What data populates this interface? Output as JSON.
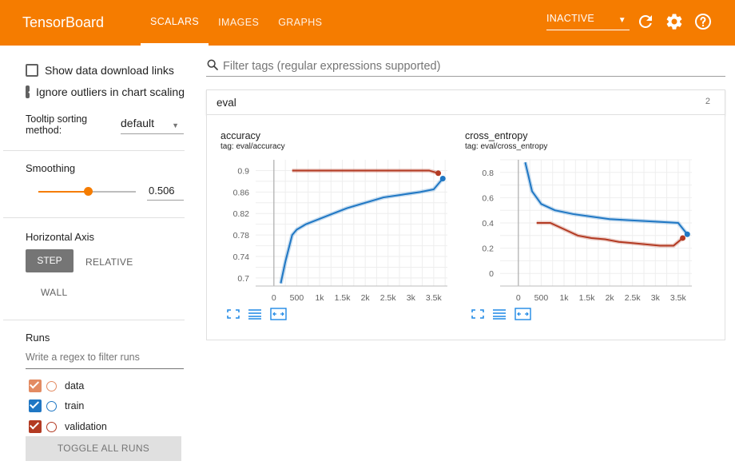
{
  "header": {
    "brand": "TensorBoard",
    "tabs": [
      {
        "label": "SCALARS",
        "active": true
      },
      {
        "label": "IMAGES",
        "active": false
      },
      {
        "label": "GRAPHS",
        "active": false
      }
    ],
    "run_state": "INACTIVE",
    "icons": [
      "refresh-icon",
      "gear-icon",
      "help-icon"
    ],
    "accent": "#f57c00"
  },
  "sidebar": {
    "show_download": "Show data download links",
    "ignore_outliers": "Ignore outliers in chart scaling",
    "tooltip_label_line1": "Tooltip sorting",
    "tooltip_label_line2": "method:",
    "tooltip_value": "default",
    "smoothing_label": "Smoothing",
    "smoothing_value": "0.506",
    "smoothing_fraction": 0.506,
    "haxis_label": "Horizontal Axis",
    "haxis_step": "STEP",
    "haxis_relative": "RELATIVE",
    "haxis_wall": "WALL",
    "runs_label": "Runs",
    "runs_filter_placeholder": "Write a regex to filter runs",
    "runs": [
      {
        "name": "data",
        "color": "#e38b62"
      },
      {
        "name": "train",
        "color": "#1f77c4"
      },
      {
        "name": "validation",
        "color": "#b33a22"
      }
    ],
    "toggle_all": "TOGGLE ALL RUNS"
  },
  "main": {
    "search_placeholder": "Filter tags (regular expressions supported)",
    "group_name": "eval",
    "group_count": "2",
    "cards": [
      {
        "title": "accuracy",
        "tag": "tag: eval/accuracy"
      },
      {
        "title": "cross_entropy",
        "tag": "tag: eval/cross_entropy"
      }
    ]
  },
  "chart_data": [
    {
      "type": "line",
      "title": "accuracy",
      "x_ticks": [
        "0",
        "500",
        "1k",
        "1.5k",
        "2k",
        "2.5k",
        "3k",
        "3.5k"
      ],
      "y_ticks": [
        "0.7",
        "0.74",
        "0.78",
        "0.82",
        "0.86",
        "0.9"
      ],
      "xlim": [
        -400,
        3800
      ],
      "ylim": [
        0.685,
        0.92
      ],
      "grid": true,
      "series": [
        {
          "name": "train",
          "color": "#1f77c4",
          "x": [
            150,
            250,
            400,
            500,
            700,
            1000,
            1300,
            1600,
            2000,
            2400,
            2800,
            3200,
            3500,
            3700
          ],
          "y": [
            0.69,
            0.73,
            0.78,
            0.79,
            0.8,
            0.81,
            0.82,
            0.83,
            0.84,
            0.85,
            0.855,
            0.86,
            0.865,
            0.885
          ]
        },
        {
          "name": "validation",
          "color": "#b33a22",
          "x": [
            400,
            700,
            1000,
            1300,
            1600,
            1900,
            2200,
            2500,
            2800,
            3100,
            3400,
            3600
          ],
          "y": [
            0.9,
            0.9,
            0.9,
            0.9,
            0.9,
            0.9,
            0.9,
            0.9,
            0.9,
            0.9,
            0.9,
            0.895
          ]
        }
      ]
    },
    {
      "type": "line",
      "title": "cross_entropy",
      "x_ticks": [
        "0",
        "500",
        "1k",
        "1.5k",
        "2k",
        "2.5k",
        "3k",
        "3.5k"
      ],
      "y_ticks": [
        "0",
        "0.2",
        "0.4",
        "0.6",
        "0.8"
      ],
      "xlim": [
        -400,
        3800
      ],
      "ylim": [
        -0.1,
        0.9
      ],
      "grid": true,
      "series": [
        {
          "name": "train",
          "color": "#1f77c4",
          "x": [
            150,
            300,
            500,
            800,
            1200,
            1600,
            2000,
            2500,
            3000,
            3500,
            3700
          ],
          "y": [
            0.88,
            0.65,
            0.55,
            0.5,
            0.47,
            0.45,
            0.43,
            0.42,
            0.41,
            0.4,
            0.31
          ]
        },
        {
          "name": "validation",
          "color": "#b33a22",
          "x": [
            400,
            700,
            1000,
            1300,
            1600,
            1900,
            2200,
            2500,
            2800,
            3100,
            3400,
            3600
          ],
          "y": [
            0.4,
            0.4,
            0.35,
            0.3,
            0.28,
            0.27,
            0.25,
            0.24,
            0.23,
            0.22,
            0.22,
            0.28
          ]
        }
      ]
    }
  ]
}
